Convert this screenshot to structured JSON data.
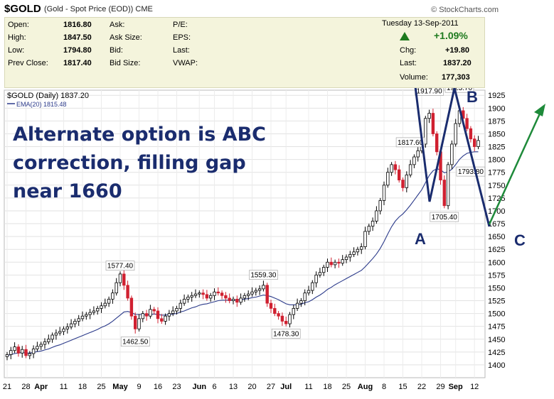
{
  "header": {
    "symbol": "$GOLD",
    "subtitle": "(Gold - Spot Price (EOD))",
    "exchange": "CME",
    "logo": "© StockCharts.com"
  },
  "quote": {
    "left": [
      {
        "label": "Open:",
        "value": "1816.80"
      },
      {
        "label": "High:",
        "value": "1847.50"
      },
      {
        "label": "Low:",
        "value": "1794.80"
      },
      {
        "label": "Prev Close:",
        "value": "1817.40"
      }
    ],
    "mid": [
      "Ask:",
      "Ask Size:",
      "Bid:",
      "Bid Size:"
    ],
    "mid2": [
      "P/E:",
      "EPS:",
      "Last:",
      "VWAP:"
    ],
    "date": "Tuesday  13-Sep-2011",
    "pct": "+1.09%",
    "right": [
      {
        "label": "Chg:",
        "value": "+19.80"
      },
      {
        "label": "Last:",
        "value": "1837.20"
      },
      {
        "label": "Volume:",
        "value": "177,303"
      }
    ],
    "up_color": "#1e7a1e"
  },
  "chart_data": {
    "type": "candlestick",
    "legend": [
      "$GOLD (Daily) 1837.20",
      "EMA(20) 1815.48"
    ],
    "ylim": [
      1375,
      1935
    ],
    "yticks": [
      1400,
      1425,
      1450,
      1475,
      1500,
      1525,
      1550,
      1575,
      1600,
      1625,
      1650,
      1675,
      1700,
      1725,
      1750,
      1775,
      1800,
      1825,
      1850,
      1875,
      1900,
      1925
    ],
    "xticks": [
      {
        "label": "21",
        "i": 0
      },
      {
        "label": "28",
        "i": 5
      },
      {
        "label": "Apr",
        "i": 9,
        "bold": true
      },
      {
        "label": "11",
        "i": 15
      },
      {
        "label": "18",
        "i": 20
      },
      {
        "label": "25",
        "i": 25
      },
      {
        "label": "May",
        "i": 30,
        "bold": true
      },
      {
        "label": "9",
        "i": 35
      },
      {
        "label": "16",
        "i": 40
      },
      {
        "label": "23",
        "i": 45
      },
      {
        "label": "Jun",
        "i": 51,
        "bold": true
      },
      {
        "label": "6",
        "i": 55
      },
      {
        "label": "13",
        "i": 60
      },
      {
        "label": "20",
        "i": 65
      },
      {
        "label": "27",
        "i": 70
      },
      {
        "label": "Jul",
        "i": 74,
        "bold": true
      },
      {
        "label": "11",
        "i": 80
      },
      {
        "label": "18",
        "i": 85
      },
      {
        "label": "25",
        "i": 90
      },
      {
        "label": "Aug",
        "i": 95,
        "bold": true
      },
      {
        "label": "8",
        "i": 100
      },
      {
        "label": "15",
        "i": 105
      },
      {
        "label": "22",
        "i": 110
      },
      {
        "label": "29",
        "i": 115
      },
      {
        "label": "Sep",
        "i": 119,
        "bold": true
      },
      {
        "label": "12",
        "i": 124
      }
    ],
    "closes": [
      1420,
      1428,
      1435,
      1423,
      1430,
      1418,
      1422,
      1431,
      1436,
      1440,
      1445,
      1450,
      1458,
      1462,
      1465,
      1470,
      1474,
      1480,
      1485,
      1490,
      1495,
      1498,
      1502,
      1505,
      1510,
      1515,
      1520,
      1528,
      1540,
      1560,
      1577,
      1555,
      1530,
      1495,
      1470,
      1490,
      1500,
      1495,
      1508,
      1505,
      1490,
      1485,
      1495,
      1500,
      1505,
      1510,
      1520,
      1528,
      1532,
      1535,
      1538,
      1540,
      1537,
      1530,
      1535,
      1542,
      1540,
      1535,
      1530,
      1525,
      1528,
      1522,
      1530,
      1535,
      1538,
      1542,
      1545,
      1548,
      1555,
      1520,
      1510,
      1500,
      1495,
      1485,
      1480,
      1498,
      1510,
      1520,
      1525,
      1540,
      1545,
      1560,
      1575,
      1580,
      1590,
      1600,
      1595,
      1600,
      1598,
      1605,
      1610,
      1615,
      1620,
      1625,
      1630,
      1660,
      1670,
      1680,
      1700,
      1720,
      1750,
      1775,
      1790,
      1780,
      1760,
      1745,
      1770,
      1790,
      1805,
      1817,
      1830,
      1880,
      1890,
      1850,
      1815,
      1760,
      1710,
      1790,
      1830,
      1870,
      1895,
      1880,
      1860,
      1840,
      1825,
      1837
    ],
    "ema": [
      1418,
      1420,
      1422,
      1423,
      1424,
      1423,
      1423,
      1424,
      1426,
      1427,
      1429,
      1431,
      1434,
      1437,
      1439,
      1442,
      1445,
      1448,
      1451,
      1454,
      1457,
      1460,
      1463,
      1466,
      1469,
      1473,
      1476,
      1480,
      1485,
      1491,
      1497,
      1503,
      1504,
      1502,
      1498,
      1498,
      1498,
      1497,
      1498,
      1499,
      1498,
      1497,
      1497,
      1498,
      1499,
      1500,
      1503,
      1505,
      1508,
      1511,
      1513,
      1516,
      1518,
      1519,
      1521,
      1523,
      1525,
      1526,
      1526,
      1526,
      1526,
      1526,
      1527,
      1528,
      1529,
      1531,
      1532,
      1534,
      1536,
      1535,
      1533,
      1530,
      1527,
      1523,
      1519,
      1517,
      1517,
      1517,
      1518,
      1521,
      1523,
      1527,
      1532,
      1536,
      1541,
      1547,
      1551,
      1556,
      1560,
      1564,
      1568,
      1572,
      1576,
      1580,
      1584,
      1591,
      1599,
      1607,
      1616,
      1627,
      1640,
      1655,
      1669,
      1680,
      1688,
      1694,
      1702,
      1711,
      1721,
      1731,
      1741,
      1755,
      1769,
      1778,
      1782,
      1780,
      1774,
      1776,
      1781,
      1790,
      1800,
      1807,
      1812,
      1814,
      1815,
      1815
    ],
    "labels": [
      {
        "text": "1577.40",
        "i": 30,
        "y": 1577.4,
        "pos": "above"
      },
      {
        "text": "1462.50",
        "i": 34,
        "y": 1462.5,
        "pos": "below"
      },
      {
        "text": "1559.30",
        "i": 68,
        "y": 1559.3,
        "pos": "above"
      },
      {
        "text": "1478.30",
        "i": 74,
        "y": 1478.3,
        "pos": "below"
      },
      {
        "text": "1817.60",
        "i": 107,
        "y": 1817.6,
        "pos": "above"
      },
      {
        "text": "1917.90",
        "i": 112,
        "y": 1917.9,
        "pos": "above"
      },
      {
        "text": "1705.40",
        "i": 116,
        "y": 1705.4,
        "pos": "below"
      },
      {
        "text": "1923.70",
        "i": 120,
        "y": 1923.7,
        "pos": "above"
      },
      {
        "text": "1793.80",
        "i": 123,
        "y": 1793.8,
        "pos": "below"
      }
    ]
  },
  "annotation": {
    "lines": [
      "Alternate option is ABC",
      "correction, filling gap",
      "near 1660"
    ],
    "labels": [
      "A",
      "B",
      "C"
    ],
    "color": "#1a2c6e",
    "arrow_color": "#1e8a3a"
  }
}
